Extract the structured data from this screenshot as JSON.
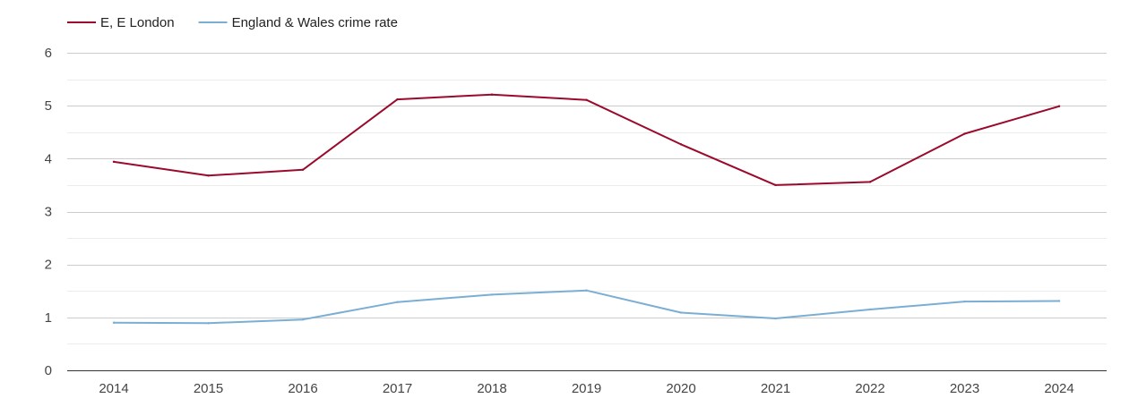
{
  "chart_data": {
    "type": "line",
    "title": "",
    "xlabel": "",
    "ylabel": "",
    "categories": [
      "2014",
      "2015",
      "2016",
      "2017",
      "2018",
      "2019",
      "2020",
      "2021",
      "2022",
      "2023",
      "2024"
    ],
    "ylim": [
      0,
      6
    ],
    "yticks": [
      0,
      1,
      2,
      3,
      4,
      5,
      6
    ],
    "grid": true,
    "legend_position": "top-left",
    "series": [
      {
        "name": "E, E London",
        "color": "#9b0a2c",
        "values": [
          3.94,
          3.68,
          3.79,
          5.12,
          5.21,
          5.11,
          4.27,
          3.5,
          3.56,
          4.47,
          4.99
        ]
      },
      {
        "name": "England & Wales crime rate",
        "color": "#7aaed4",
        "values": [
          0.9,
          0.89,
          0.96,
          1.29,
          1.43,
          1.51,
          1.09,
          0.98,
          1.15,
          1.3,
          1.31
        ]
      }
    ]
  }
}
